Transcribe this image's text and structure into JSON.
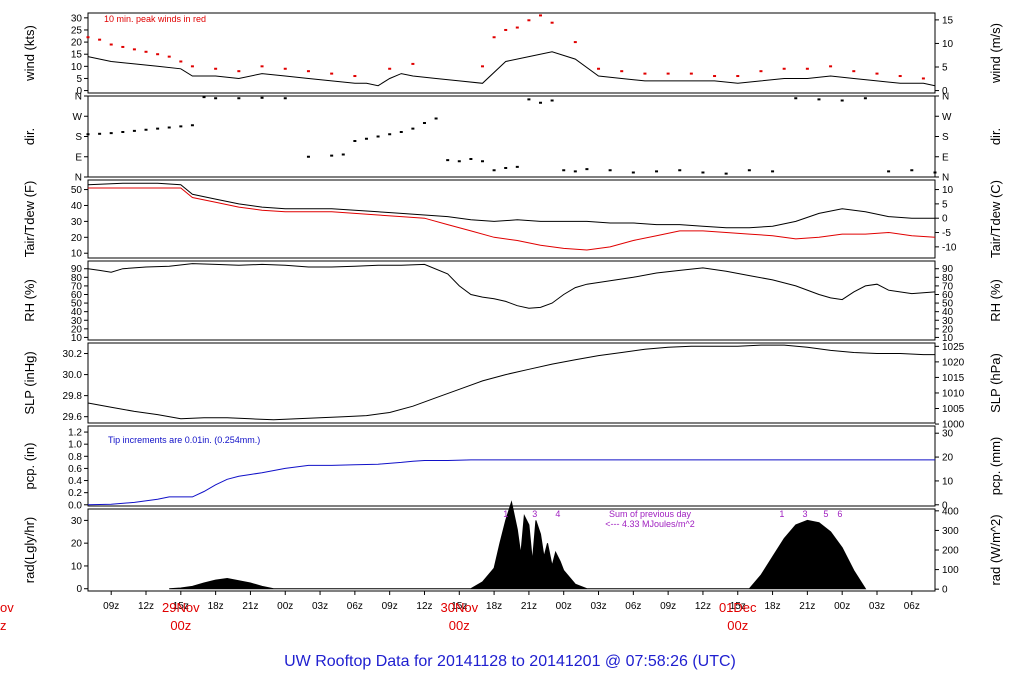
{
  "title": "UW Rooftop Data for 20141128  to  20141201 @ 07:58:26  (UTC)",
  "x_axis": {
    "hour_labels": [
      "09z",
      "12z",
      "15z",
      "18z",
      "21z",
      "00z",
      "03z",
      "06z",
      "09z",
      "12z",
      "15z",
      "18z",
      "21z",
      "00z",
      "03z",
      "06z",
      "09z",
      "12z",
      "15z",
      "18z",
      "21z",
      "00z",
      "03z",
      "06z"
    ],
    "hour_start": 9,
    "hour_step": 3,
    "day_labels": [
      {
        "hour": 15,
        "date": "29Nov",
        "time": "00z"
      },
      {
        "hour": 39,
        "date": "30Nov",
        "time": "00z"
      },
      {
        "hour": 63,
        "date": "01Dec",
        "time": "00z"
      }
    ],
    "clipped_left_labels": [
      "ov",
      "z"
    ],
    "x_range_hours": [
      7,
      80
    ]
  },
  "colors": {
    "main": "#000000",
    "accent": "#e00000",
    "precip": "#1010c8",
    "annotation": "#a020c0",
    "title": "#2020d0"
  },
  "chart_data": [
    {
      "type": "line",
      "id": "wind",
      "ylabel_left": "wind (kts)",
      "ylabel_right": "wind (m/s)",
      "left_ticks": [
        0,
        5,
        10,
        15,
        20,
        25,
        30
      ],
      "right_ticks": [
        0,
        5,
        10,
        15
      ],
      "ylim": [
        -1,
        32
      ],
      "annotation": "10 min. peak winds in red",
      "series": [
        {
          "color": "#000000",
          "x": [
            7,
            9,
            11,
            13,
            15,
            16,
            18,
            20,
            22,
            24,
            26,
            28,
            30,
            31,
            32,
            33,
            34,
            35,
            37,
            39,
            41,
            43,
            45,
            47,
            49,
            51,
            53,
            55,
            57,
            59,
            61,
            63,
            65,
            67,
            69,
            71,
            73,
            75,
            77,
            79,
            80
          ],
          "y": [
            14,
            12,
            11,
            10,
            9,
            6,
            6,
            5,
            7,
            6,
            5,
            4,
            3,
            3,
            2,
            5,
            7,
            6,
            5,
            4,
            3,
            12,
            14,
            16,
            13,
            6,
            5,
            4,
            4,
            4,
            4,
            3,
            4,
            5,
            5,
            6,
            5,
            4,
            3,
            3,
            2
          ]
        },
        {
          "color": "#e00000",
          "style": "points",
          "x": [
            7,
            8,
            9,
            10,
            11,
            12,
            13,
            14,
            15,
            16,
            18,
            20,
            22,
            24,
            26,
            28,
            30,
            33,
            35,
            41,
            42,
            43,
            44,
            45,
            46,
            47,
            49,
            51,
            53,
            55,
            57,
            59,
            61,
            63,
            65,
            67,
            69,
            71,
            73,
            75,
            77,
            79
          ],
          "y": [
            22,
            21,
            19,
            18,
            17,
            16,
            15,
            14,
            12,
            10,
            9,
            8,
            10,
            9,
            8,
            7,
            6,
            9,
            11,
            10,
            22,
            25,
            26,
            29,
            31,
            28,
            20,
            9,
            8,
            7,
            7,
            7,
            6,
            6,
            8,
            9,
            9,
            10,
            8,
            7,
            6,
            5
          ]
        }
      ]
    },
    {
      "type": "scatter",
      "id": "dir",
      "ylabel_left": "dir.",
      "ylabel_right": "dir.",
      "left_ticks": [
        "N",
        "E",
        "S",
        "W",
        "N"
      ],
      "right_ticks": [
        "N",
        "E",
        "S",
        "W",
        "N"
      ],
      "ylim": [
        0,
        360
      ],
      "series": [
        {
          "color": "#000000",
          "x": [
            7,
            8,
            9,
            10,
            11,
            12,
            13,
            14,
            15,
            16,
            17,
            18,
            20,
            22,
            24,
            26,
            28,
            29,
            30,
            31,
            32,
            33,
            34,
            35,
            36,
            37,
            38,
            39,
            40,
            41,
            42,
            43,
            44,
            45,
            46,
            47,
            48,
            49,
            50,
            52,
            54,
            56,
            58,
            60,
            62,
            64,
            66,
            68,
            70,
            72,
            74,
            76,
            78,
            80
          ],
          "y": [
            190,
            192,
            195,
            200,
            205,
            210,
            215,
            220,
            225,
            230,
            355,
            350,
            350,
            352,
            350,
            90,
            95,
            100,
            160,
            170,
            180,
            190,
            200,
            215,
            240,
            260,
            75,
            70,
            80,
            70,
            30,
            40,
            45,
            345,
            330,
            340,
            30,
            25,
            35,
            30,
            20,
            25,
            30,
            20,
            15,
            30,
            25,
            350,
            345,
            340,
            350,
            25,
            30,
            20
          ]
        }
      ]
    },
    {
      "type": "line",
      "id": "temp",
      "ylabel_left": "Tair/Tdew (F)",
      "ylabel_right": "Tair/Tdew (C)",
      "left_ticks": [
        10,
        20,
        30,
        40,
        50
      ],
      "right_ticks": [
        -10,
        -5,
        0,
        5,
        10
      ],
      "ylim": [
        7,
        56
      ],
      "series": [
        {
          "name": "Tair",
          "color": "#000000",
          "x": [
            7,
            10,
            13,
            15,
            16,
            18,
            20,
            22,
            24,
            26,
            28,
            30,
            32,
            34,
            36,
            38,
            40,
            42,
            44,
            46,
            48,
            50,
            52,
            54,
            56,
            58,
            60,
            62,
            64,
            66,
            68,
            70,
            72,
            74,
            76,
            78,
            80
          ],
          "y": [
            53,
            54,
            54,
            53,
            47,
            44,
            41,
            39,
            38,
            38,
            38,
            37,
            36,
            35,
            34,
            33,
            31,
            30,
            31,
            30,
            30,
            30,
            29,
            29,
            28,
            28,
            27,
            26,
            26,
            27,
            30,
            35,
            38,
            36,
            33,
            32,
            32
          ]
        },
        {
          "name": "Tdew",
          "color": "#e00000",
          "x": [
            7,
            10,
            13,
            15,
            16,
            18,
            20,
            22,
            24,
            26,
            28,
            30,
            32,
            34,
            36,
            38,
            40,
            42,
            44,
            46,
            48,
            50,
            52,
            54,
            56,
            58,
            60,
            62,
            64,
            66,
            68,
            70,
            72,
            74,
            76,
            78,
            80
          ],
          "y": [
            51,
            51,
            51,
            51,
            45,
            42,
            39,
            37,
            36,
            36,
            36,
            35,
            34,
            33,
            32,
            28,
            24,
            20,
            18,
            15,
            13,
            12,
            14,
            18,
            21,
            24,
            24,
            23,
            22,
            21,
            19,
            20,
            22,
            22,
            23,
            21,
            20
          ]
        }
      ]
    },
    {
      "type": "line",
      "id": "rh",
      "ylabel_left": "RH (%)",
      "ylabel_right": "RH (%)",
      "left_ticks": [
        10,
        20,
        30,
        40,
        50,
        60,
        70,
        80,
        90
      ],
      "right_ticks": [
        10,
        20,
        30,
        40,
        50,
        60,
        70,
        80,
        90
      ],
      "ylim": [
        7,
        99
      ],
      "series": [
        {
          "color": "#000000",
          "x": [
            7,
            8,
            9,
            10,
            12,
            14,
            16,
            18,
            20,
            22,
            24,
            26,
            28,
            30,
            32,
            34,
            36,
            38,
            39,
            40,
            41,
            42,
            43,
            44,
            45,
            46,
            47,
            48,
            49,
            50,
            52,
            54,
            56,
            58,
            60,
            62,
            64,
            66,
            68,
            70,
            71,
            72,
            73,
            74,
            75,
            76,
            78,
            80
          ],
          "y": [
            90,
            88,
            86,
            90,
            92,
            93,
            96,
            95,
            94,
            95,
            94,
            92,
            92,
            93,
            94,
            94,
            95,
            84,
            70,
            60,
            57,
            55,
            52,
            47,
            44,
            45,
            50,
            60,
            68,
            72,
            76,
            80,
            85,
            88,
            91,
            87,
            82,
            77,
            70,
            60,
            56,
            54,
            63,
            70,
            72,
            65,
            61,
            63
          ]
        }
      ]
    },
    {
      "type": "line",
      "id": "pressure",
      "ylabel_left": "SLP (inHg)",
      "ylabel_right": "SLP (hPa)",
      "left_ticks": [
        "29.6",
        "29.8",
        "30.0",
        "30.2"
      ],
      "right_ticks": [
        1000,
        1005,
        1010,
        1015,
        1020,
        1025
      ],
      "ylim": [
        29.54,
        30.3
      ],
      "series": [
        {
          "color": "#000000",
          "x": [
            7,
            9,
            11,
            13,
            15,
            17,
            19,
            21,
            23,
            25,
            27,
            29,
            31,
            33,
            35,
            37,
            39,
            41,
            43,
            45,
            47,
            49,
            51,
            53,
            55,
            57,
            59,
            61,
            63,
            65,
            67,
            69,
            71,
            73,
            75,
            77,
            79,
            80
          ],
          "y": [
            29.73,
            29.69,
            29.65,
            29.62,
            29.58,
            29.59,
            29.59,
            29.58,
            29.57,
            29.58,
            29.59,
            29.6,
            29.61,
            29.64,
            29.7,
            29.78,
            29.86,
            29.94,
            30.0,
            30.05,
            30.1,
            30.14,
            30.18,
            30.21,
            30.24,
            30.26,
            30.27,
            30.27,
            30.27,
            30.28,
            30.28,
            30.26,
            30.23,
            30.21,
            30.2,
            30.2,
            30.19,
            30.19
          ]
        }
      ]
    },
    {
      "type": "line",
      "id": "precip",
      "ylabel_left": "pcp. (in)",
      "ylabel_right": "pcp. (mm)",
      "left_ticks": [
        "0.0",
        "0.2",
        "0.4",
        "0.6",
        "0.8",
        "1.0",
        "1.2"
      ],
      "right_ticks": [
        0,
        10,
        20,
        30
      ],
      "ylim": [
        -0.02,
        1.3
      ],
      "annotation": "Tip increments are 0.01in. (0.254mm.)",
      "series": [
        {
          "color": "#1010c8",
          "x": [
            7,
            9,
            11,
            13,
            14,
            15,
            16,
            17,
            18,
            19,
            20,
            21,
            22,
            24,
            26,
            28,
            30,
            32,
            34,
            35,
            36,
            38,
            40,
            80
          ],
          "y": [
            0.0,
            0.01,
            0.04,
            0.09,
            0.13,
            0.13,
            0.13,
            0.22,
            0.33,
            0.42,
            0.47,
            0.5,
            0.53,
            0.6,
            0.65,
            0.65,
            0.66,
            0.67,
            0.7,
            0.72,
            0.73,
            0.73,
            0.74,
            0.74
          ]
        }
      ]
    },
    {
      "type": "area",
      "id": "radiation",
      "ylabel_left": "rad(Lgly/hr)",
      "ylabel_right": "rad (W/m^2)",
      "left_ticks": [
        0,
        10,
        20,
        30
      ],
      "right_ticks": [
        0,
        100,
        200,
        300,
        400
      ],
      "ylim": [
        -1,
        35
      ],
      "annotation_lines": [
        "Sum of previous day",
        "<--- 4.33 MJoules/m^2"
      ],
      "hour_marks": [
        {
          "hour": 43.0,
          "label": "1"
        },
        {
          "hour": 45.5,
          "label": "3"
        },
        {
          "hour": 47.5,
          "label": "4"
        },
        {
          "hour": 66.8,
          "label": "1"
        },
        {
          "hour": 68.8,
          "label": "3"
        },
        {
          "hour": 70.6,
          "label": "5"
        },
        {
          "hour": 71.8,
          "label": "6"
        }
      ],
      "series": [
        {
          "color": "#000000",
          "x": [
            14,
            15,
            16,
            17,
            18,
            19,
            20,
            21,
            22,
            23,
            40,
            41,
            42,
            42.5,
            43,
            43.5,
            44,
            44.3,
            44.6,
            45,
            45.3,
            45.6,
            46,
            46.3,
            46.6,
            47,
            47.3,
            47.7,
            48,
            48.5,
            49,
            50,
            64,
            65,
            66,
            67,
            68,
            69,
            70,
            71,
            72,
            73,
            74
          ],
          "y": [
            0,
            0.3,
            1,
            2.5,
            3.8,
            4.5,
            3.5,
            2.5,
            1,
            0,
            0,
            3,
            9,
            20,
            30,
            38,
            26,
            15,
            32,
            28,
            12,
            30,
            24,
            14,
            20,
            10,
            16,
            12,
            8,
            5,
            2,
            0,
            0,
            6,
            14,
            22,
            28,
            30,
            29,
            25,
            18,
            8,
            0
          ]
        }
      ]
    }
  ]
}
